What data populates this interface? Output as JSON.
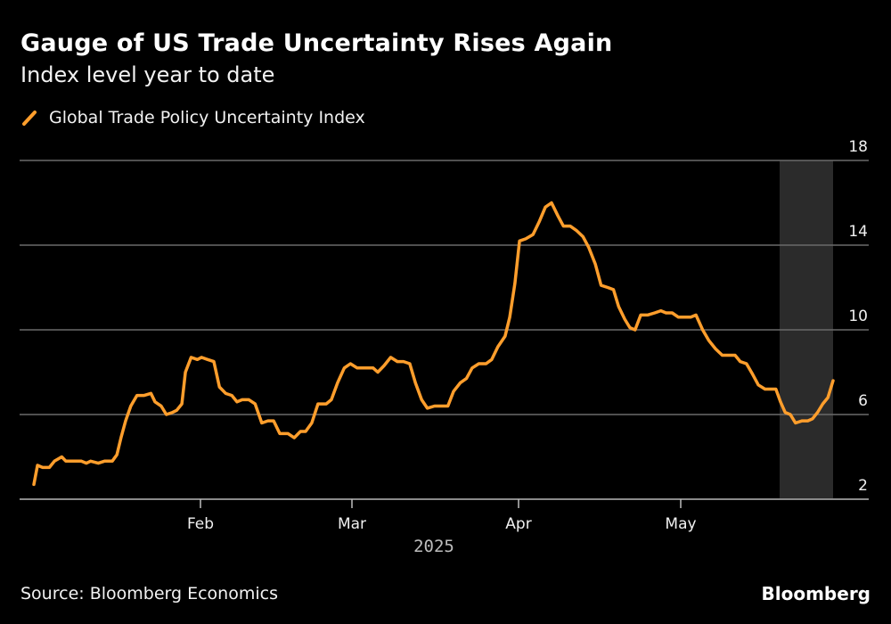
{
  "header": {
    "title": "Gauge of US Trade Uncertainty Rises Again",
    "subtitle": "Index level year to date"
  },
  "footer": {
    "source": "Source: Bloomberg Economics",
    "brand": "Bloomberg"
  },
  "colors": {
    "background": "#000000",
    "line": "#ff9e2c",
    "grid": "#6b6b6b",
    "highlight_band": "#2b2b2b",
    "text": "#ffffff"
  },
  "chart_data": {
    "type": "line",
    "title": "Gauge of US Trade Uncertainty Rises Again",
    "subtitle": "Index level year to date",
    "xlabel": "2025",
    "ylabel": "",
    "ylim": [
      2,
      18
    ],
    "yticks": [
      2,
      6,
      10,
      14,
      18
    ],
    "y_axis_side": "right",
    "grid": true,
    "legend_position": "top-left",
    "x_domain": [
      0,
      150
    ],
    "x_unit": "days since 2025-01-01 (approx.)",
    "xticks": [
      {
        "label": "Feb",
        "x": 31
      },
      {
        "label": "Mar",
        "x": 59
      },
      {
        "label": "Apr",
        "x": 90
      },
      {
        "label": "May",
        "x": 120
      }
    ],
    "highlight_region": {
      "x_start": 138,
      "x_end": 148,
      "description": "shaded recent period"
    },
    "series": [
      {
        "name": "Global Trade Policy Uncertainty Index",
        "color": "#ff9e2c",
        "points": [
          [
            2.6,
            2.7
          ],
          [
            3.3,
            3.6
          ],
          [
            4.3,
            3.5
          ],
          [
            5.6,
            3.5
          ],
          [
            6.6,
            3.8
          ],
          [
            8.0,
            4.0
          ],
          [
            8.8,
            3.8
          ],
          [
            10.3,
            3.8
          ],
          [
            11.8,
            3.8
          ],
          [
            12.8,
            3.7
          ],
          [
            13.6,
            3.8
          ],
          [
            15.1,
            3.7
          ],
          [
            16.3,
            3.8
          ],
          [
            17.8,
            3.8
          ],
          [
            18.7,
            4.1
          ],
          [
            19.5,
            4.9
          ],
          [
            20.4,
            5.7
          ],
          [
            21.4,
            6.4
          ],
          [
            22.6,
            6.9
          ],
          [
            24.0,
            6.9
          ],
          [
            25.3,
            7.0
          ],
          [
            26.1,
            6.6
          ],
          [
            27.3,
            6.4
          ],
          [
            28.3,
            6.0
          ],
          [
            29.5,
            6.1
          ],
          [
            30.3,
            6.2
          ],
          [
            31.3,
            6.5
          ],
          [
            32.0,
            8.0
          ],
          [
            33.1,
            8.7
          ],
          [
            34.3,
            8.6
          ],
          [
            35.1,
            8.7
          ],
          [
            36.3,
            8.6
          ],
          [
            37.5,
            8.5
          ],
          [
            38.6,
            7.3
          ],
          [
            39.8,
            7.0
          ],
          [
            41.0,
            6.9
          ],
          [
            42.0,
            6.6
          ],
          [
            43.0,
            6.7
          ],
          [
            44.3,
            6.7
          ],
          [
            45.5,
            6.5
          ],
          [
            46.8,
            5.6
          ],
          [
            48.0,
            5.7
          ],
          [
            49.1,
            5.7
          ],
          [
            50.3,
            5.1
          ],
          [
            51.9,
            5.1
          ],
          [
            53.1,
            4.9
          ],
          [
            54.3,
            5.2
          ],
          [
            55.3,
            5.2
          ],
          [
            56.5,
            5.6
          ],
          [
            57.7,
            6.5
          ],
          [
            59.3,
            6.5
          ],
          [
            60.3,
            6.7
          ],
          [
            61.5,
            7.5
          ],
          [
            62.8,
            8.2
          ],
          [
            64.0,
            8.4
          ],
          [
            65.3,
            8.2
          ],
          [
            66.6,
            8.2
          ],
          [
            68.4,
            8.2
          ],
          [
            69.3,
            8.0
          ],
          [
            70.5,
            8.3
          ],
          [
            71.8,
            8.7
          ],
          [
            73.1,
            8.5
          ],
          [
            74.3,
            8.5
          ],
          [
            75.5,
            8.4
          ],
          [
            76.6,
            7.5
          ],
          [
            77.8,
            6.7
          ],
          [
            78.9,
            6.3
          ],
          [
            80.3,
            6.4
          ],
          [
            81.5,
            6.4
          ],
          [
            82.9,
            6.4
          ],
          [
            84.0,
            7.1
          ],
          [
            85.3,
            7.5
          ],
          [
            86.5,
            7.7
          ],
          [
            87.6,
            8.2
          ],
          [
            88.9,
            8.4
          ],
          [
            90.3,
            8.4
          ],
          [
            91.4,
            8.6
          ],
          [
            92.6,
            9.2
          ],
          [
            94.0,
            9.7
          ],
          [
            94.9,
            10.6
          ],
          [
            95.9,
            12.2
          ],
          [
            96.8,
            14.2
          ],
          [
            98.0,
            14.3
          ],
          [
            99.4,
            14.5
          ],
          [
            100.6,
            15.1
          ],
          [
            101.8,
            15.8
          ],
          [
            103.0,
            16.0
          ],
          [
            104.2,
            15.4
          ],
          [
            105.3,
            14.9
          ],
          [
            106.6,
            14.9
          ],
          [
            107.8,
            14.7
          ],
          [
            109.1,
            14.4
          ],
          [
            110.2,
            13.9
          ],
          [
            111.5,
            13.1
          ],
          [
            112.6,
            12.1
          ],
          [
            113.9,
            12.0
          ],
          [
            115.0,
            11.9
          ],
          [
            116.0,
            11.1
          ],
          [
            117.2,
            10.5
          ],
          [
            118.2,
            10.1
          ],
          [
            119.2,
            10.0
          ],
          [
            120.3,
            10.7
          ],
          [
            121.6,
            10.7
          ],
          [
            123.0,
            10.8
          ],
          [
            124.2,
            10.9
          ],
          [
            125.2,
            10.8
          ],
          [
            126.4,
            10.8
          ],
          [
            127.6,
            10.6
          ],
          [
            128.9,
            10.6
          ],
          [
            130.0,
            10.6
          ],
          [
            131.0,
            10.7
          ],
          [
            132.3,
            10.0
          ],
          [
            133.5,
            9.5
          ],
          [
            134.8,
            9.1
          ],
          [
            136.1,
            8.8
          ],
          [
            137.3,
            8.8
          ],
          [
            138.6,
            8.8
          ],
          [
            139.6,
            8.5
          ],
          [
            140.8,
            8.4
          ],
          [
            142.0,
            7.9
          ],
          [
            143.1,
            7.4
          ],
          [
            144.4,
            7.2
          ],
          [
            145.5,
            7.2
          ],
          [
            146.5,
            7.2
          ],
          [
            147.4,
            6.6
          ],
          [
            148.3,
            6.1
          ],
          [
            149.3,
            6.0
          ],
          [
            150.3,
            5.6
          ],
          [
            151.6,
            5.7
          ],
          [
            152.7,
            5.7
          ],
          [
            153.6,
            5.8
          ],
          [
            154.6,
            6.1
          ],
          [
            155.6,
            6.5
          ],
          [
            156.6,
            6.8
          ],
          [
            157.6,
            7.6
          ]
        ]
      }
    ]
  },
  "legend": {
    "items": [
      {
        "label": "Global Trade Policy Uncertainty Index",
        "color": "#ff9e2c",
        "icon": "line-swatch-icon"
      }
    ]
  }
}
